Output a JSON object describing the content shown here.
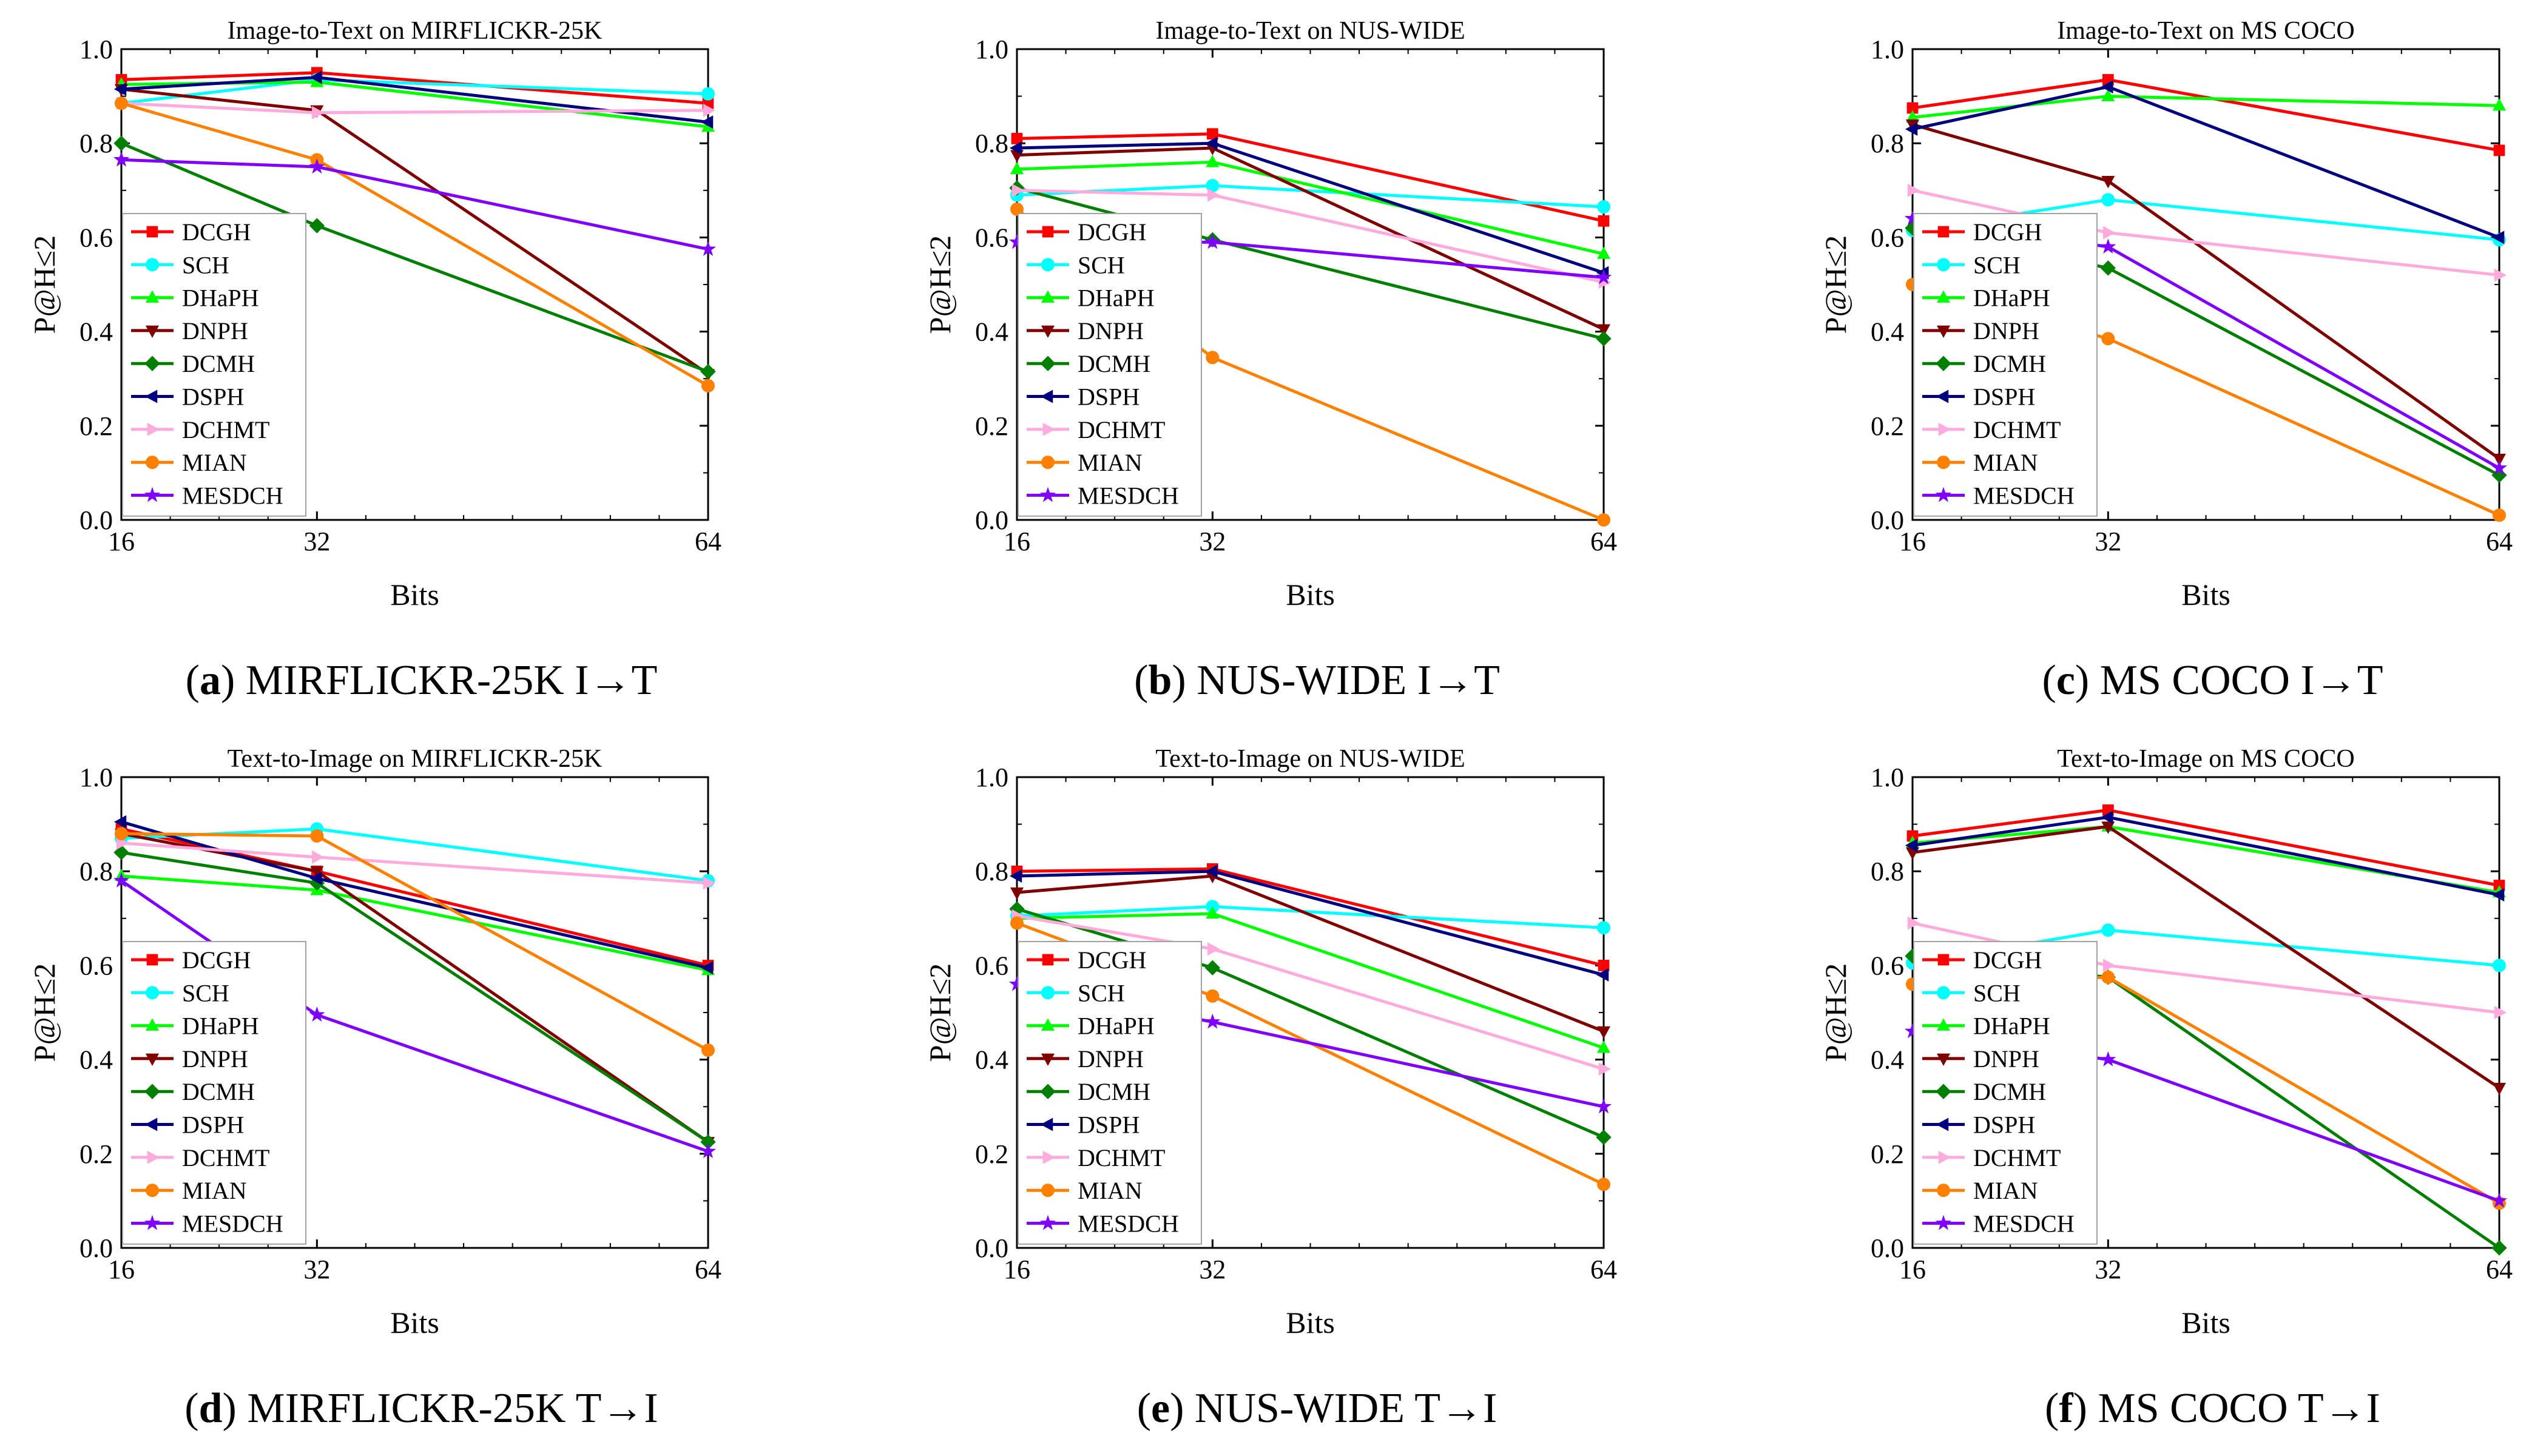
{
  "legend_series": [
    "DCGH",
    "SCH",
    "DHaPH",
    "DNPH",
    "DCMH",
    "DSPH",
    "DCHMT",
    "MIAN",
    "MESDCH"
  ],
  "series_styles": [
    {
      "name": "DCGH",
      "color": "#ff0000",
      "marker": "square"
    },
    {
      "name": "SCH",
      "color": "#00ffff",
      "marker": "circle"
    },
    {
      "name": "DHaPH",
      "color": "#00ff00",
      "marker": "triangle-up"
    },
    {
      "name": "DNPH",
      "color": "#800000",
      "marker": "triangle-down"
    },
    {
      "name": "DCMH",
      "color": "#008000",
      "marker": "diamond"
    },
    {
      "name": "DSPH",
      "color": "#000080",
      "marker": "triangle-left"
    },
    {
      "name": "DCHMT",
      "color": "#ffaadd",
      "marker": "triangle-right"
    },
    {
      "name": "MIAN",
      "color": "#ff8000",
      "marker": "circle"
    },
    {
      "name": "MESDCH",
      "color": "#8000ff",
      "marker": "star"
    }
  ],
  "chart_data": [
    {
      "type": "line",
      "letter": "a",
      "caption_text": "MIRFLICKR-25K I→T",
      "title": "Image-to-Text on MIRFLICKR-25K",
      "xlabel": "Bits",
      "ylabel": "P@H≤2",
      "x": [
        16,
        32,
        64
      ],
      "xticks": [
        "16",
        "32",
        "64"
      ],
      "xlim": [
        16,
        64
      ],
      "ylim": [
        0.0,
        1.0
      ],
      "yticks": [
        "0.0",
        "0.2",
        "0.4",
        "0.6",
        "0.8",
        "1.0"
      ],
      "series": [
        {
          "name": "DCGH",
          "values": [
            0.935,
            0.95,
            0.885
          ]
        },
        {
          "name": "SCH",
          "values": [
            0.885,
            0.935,
            0.905
          ]
        },
        {
          "name": "DHaPH",
          "values": [
            0.925,
            0.93,
            0.835
          ]
        },
        {
          "name": "DNPH",
          "values": [
            0.915,
            0.87,
            0.31
          ]
        },
        {
          "name": "DCMH",
          "values": [
            0.8,
            0.625,
            0.315
          ]
        },
        {
          "name": "DSPH",
          "values": [
            0.915,
            0.94,
            0.845
          ]
        },
        {
          "name": "DCHMT",
          "values": [
            0.885,
            0.865,
            0.87
          ]
        },
        {
          "name": "MIAN",
          "values": [
            0.885,
            0.765,
            0.285
          ]
        },
        {
          "name": "MESDCH",
          "values": [
            0.765,
            0.75,
            0.575
          ]
        }
      ]
    },
    {
      "type": "line",
      "letter": "b",
      "caption_text": "NUS-WIDE I→T",
      "title": "Image-to-Text on NUS-WIDE",
      "xlabel": "Bits",
      "ylabel": "P@H≤2",
      "x": [
        16,
        32,
        64
      ],
      "xticks": [
        "16",
        "32",
        "64"
      ],
      "xlim": [
        16,
        64
      ],
      "ylim": [
        0.0,
        1.0
      ],
      "yticks": [
        "0.0",
        "0.2",
        "0.4",
        "0.6",
        "0.8",
        "1.0"
      ],
      "series": [
        {
          "name": "DCGH",
          "values": [
            0.81,
            0.82,
            0.635
          ]
        },
        {
          "name": "SCH",
          "values": [
            0.69,
            0.71,
            0.665
          ]
        },
        {
          "name": "DHaPH",
          "values": [
            0.745,
            0.76,
            0.565
          ]
        },
        {
          "name": "DNPH",
          "values": [
            0.775,
            0.79,
            0.405
          ]
        },
        {
          "name": "DCMH",
          "values": [
            0.705,
            0.595,
            0.385
          ]
        },
        {
          "name": "DSPH",
          "values": [
            0.79,
            0.8,
            0.525
          ]
        },
        {
          "name": "DCHMT",
          "values": [
            0.7,
            0.69,
            0.505
          ]
        },
        {
          "name": "MIAN",
          "values": [
            0.66,
            0.345,
            0.0
          ]
        },
        {
          "name": "MESDCH",
          "values": [
            0.59,
            0.59,
            0.515
          ]
        }
      ]
    },
    {
      "type": "line",
      "letter": "c",
      "caption_text": "MS COCO I→T",
      "title": "Image-to-Text on MS COCO",
      "xlabel": "Bits",
      "ylabel": "P@H≤2",
      "x": [
        16,
        32,
        64
      ],
      "xticks": [
        "16",
        "32",
        "64"
      ],
      "xlim": [
        16,
        64
      ],
      "ylim": [
        0.0,
        1.0
      ],
      "yticks": [
        "0.0",
        "0.2",
        "0.4",
        "0.6",
        "0.8",
        "1.0"
      ],
      "series": [
        {
          "name": "DCGH",
          "values": [
            0.875,
            0.935,
            0.785
          ]
        },
        {
          "name": "SCH",
          "values": [
            0.615,
            0.68,
            0.595
          ]
        },
        {
          "name": "DHaPH",
          "values": [
            0.855,
            0.9,
            0.88
          ]
        },
        {
          "name": "DNPH",
          "values": [
            0.84,
            0.72,
            0.13
          ]
        },
        {
          "name": "DCMH",
          "values": [
            0.62,
            0.535,
            0.095
          ]
        },
        {
          "name": "DSPH",
          "values": [
            0.83,
            0.92,
            0.6
          ]
        },
        {
          "name": "DCHMT",
          "values": [
            0.7,
            0.61,
            0.52
          ]
        },
        {
          "name": "MIAN",
          "values": [
            0.5,
            0.385,
            0.01
          ]
        },
        {
          "name": "MESDCH",
          "values": [
            0.64,
            0.58,
            0.11
          ]
        }
      ]
    },
    {
      "type": "line",
      "letter": "d",
      "caption_text": "MIRFLICKR-25K T→I",
      "title": "Text-to-Image on MIRFLICKR-25K",
      "xlabel": "Bits",
      "ylabel": "P@H≤2",
      "x": [
        16,
        32,
        64
      ],
      "xticks": [
        "16",
        "32",
        "64"
      ],
      "xlim": [
        16,
        64
      ],
      "ylim": [
        0.0,
        1.0
      ],
      "yticks": [
        "0.0",
        "0.2",
        "0.4",
        "0.6",
        "0.8",
        "1.0"
      ],
      "series": [
        {
          "name": "DCGH",
          "values": [
            0.89,
            0.8,
            0.6
          ]
        },
        {
          "name": "SCH",
          "values": [
            0.87,
            0.89,
            0.78
          ]
        },
        {
          "name": "DHaPH",
          "values": [
            0.79,
            0.76,
            0.59
          ]
        },
        {
          "name": "DNPH",
          "values": [
            0.88,
            0.8,
            0.225
          ]
        },
        {
          "name": "DCMH",
          "values": [
            0.84,
            0.775,
            0.225
          ]
        },
        {
          "name": "DSPH",
          "values": [
            0.905,
            0.785,
            0.595
          ]
        },
        {
          "name": "DCHMT",
          "values": [
            0.86,
            0.83,
            0.775
          ]
        },
        {
          "name": "MIAN",
          "values": [
            0.88,
            0.875,
            0.42
          ]
        },
        {
          "name": "MESDCH",
          "values": [
            0.78,
            0.495,
            0.205
          ]
        }
      ]
    },
    {
      "type": "line",
      "letter": "e",
      "caption_text": "NUS-WIDE T→I",
      "title": "Text-to-Image on NUS-WIDE",
      "xlabel": "Bits",
      "ylabel": "P@H≤2",
      "x": [
        16,
        32,
        64
      ],
      "xticks": [
        "16",
        "32",
        "64"
      ],
      "xlim": [
        16,
        64
      ],
      "ylim": [
        0.0,
        1.0
      ],
      "yticks": [
        "0.0",
        "0.2",
        "0.4",
        "0.6",
        "0.8",
        "1.0"
      ],
      "series": [
        {
          "name": "DCGH",
          "values": [
            0.8,
            0.805,
            0.6
          ]
        },
        {
          "name": "SCH",
          "values": [
            0.705,
            0.725,
            0.68
          ]
        },
        {
          "name": "DHaPH",
          "values": [
            0.7,
            0.71,
            0.425
          ]
        },
        {
          "name": "DNPH",
          "values": [
            0.755,
            0.79,
            0.46
          ]
        },
        {
          "name": "DCMH",
          "values": [
            0.72,
            0.595,
            0.235
          ]
        },
        {
          "name": "DSPH",
          "values": [
            0.79,
            0.8,
            0.58
          ]
        },
        {
          "name": "DCHMT",
          "values": [
            0.705,
            0.635,
            0.38
          ]
        },
        {
          "name": "MIAN",
          "values": [
            0.69,
            0.535,
            0.135
          ]
        },
        {
          "name": "MESDCH",
          "values": [
            0.56,
            0.48,
            0.3
          ]
        }
      ]
    },
    {
      "type": "line",
      "letter": "f",
      "caption_text": "MS COCO T→I",
      "title": "Text-to-Image on MS COCO",
      "xlabel": "Bits",
      "ylabel": "P@H≤2",
      "x": [
        16,
        32,
        64
      ],
      "xticks": [
        "16",
        "32",
        "64"
      ],
      "xlim": [
        16,
        64
      ],
      "ylim": [
        0.0,
        1.0
      ],
      "yticks": [
        "0.0",
        "0.2",
        "0.4",
        "0.6",
        "0.8",
        "1.0"
      ],
      "series": [
        {
          "name": "DCGH",
          "values": [
            0.875,
            0.93,
            0.77
          ]
        },
        {
          "name": "SCH",
          "values": [
            0.605,
            0.675,
            0.6
          ]
        },
        {
          "name": "DHaPH",
          "values": [
            0.86,
            0.895,
            0.755
          ]
        },
        {
          "name": "DNPH",
          "values": [
            0.84,
            0.895,
            0.34
          ]
        },
        {
          "name": "DCMH",
          "values": [
            0.62,
            0.575,
            0.0
          ]
        },
        {
          "name": "DSPH",
          "values": [
            0.855,
            0.915,
            0.75
          ]
        },
        {
          "name": "DCHMT",
          "values": [
            0.69,
            0.6,
            0.5
          ]
        },
        {
          "name": "MIAN",
          "values": [
            0.56,
            0.575,
            0.095
          ]
        },
        {
          "name": "MESDCH",
          "values": [
            0.46,
            0.4,
            0.1
          ]
        }
      ]
    }
  ]
}
